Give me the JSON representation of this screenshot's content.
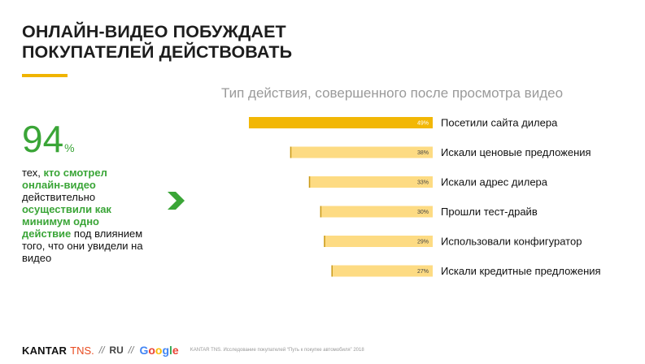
{
  "header": {
    "title_line1": "ОНЛАЙН-ВИДЕО ПОБУЖДАЕТ",
    "title_line2": "ПОКУПАТЕЛЕЙ ДЕЙСТВОВАТЬ"
  },
  "stat": {
    "number": "94",
    "unit": "%",
    "text_1": "тех, ",
    "highlight_1": "кто смотрел онлайн-видео",
    "text_2": " действительно ",
    "highlight_2": "осуществили как минимум одно действие",
    "text_3": " под влиянием того, что они увидели на видео"
  },
  "colors": {
    "accent_green": "#3aa537",
    "bar_top": "#f2b705",
    "bar_other": "#fddb83",
    "rule_yellow": "#f0b400"
  },
  "icons": {
    "arrow": "chevron-right-icon"
  },
  "chart_data": {
    "type": "bar",
    "orientation": "horizontal",
    "title": "Тип действия, совершенного после просмотра видео",
    "categories": [
      "Посетили сайта дилера",
      "Искали ценовые предложения",
      "Искали адрес дилера",
      "Прошли тест-драйв",
      "Использовали конфигуратор",
      "Искали кредитные предложения"
    ],
    "values": [
      49,
      38,
      33,
      30,
      29,
      27
    ],
    "value_labels": [
      "49%",
      "38%",
      "33%",
      "30%",
      "29%",
      "27%"
    ],
    "unit": "%",
    "bars_anchored": "right",
    "grid": false,
    "legend": "none"
  },
  "footer": {
    "brand_kantar": "KANTAR",
    "brand_tns": "TNS.",
    "separator": "//",
    "locale": "RU",
    "google_letters": [
      "G",
      "o",
      "o",
      "g",
      "l",
      "e"
    ],
    "google_colors": [
      "#4285f4",
      "#ea4335",
      "#fbbc05",
      "#4285f4",
      "#34a853",
      "#ea4335"
    ],
    "source": "KANTAR TNS. Исследование покупателей “Путь к покупке автомобиля” 2018"
  }
}
